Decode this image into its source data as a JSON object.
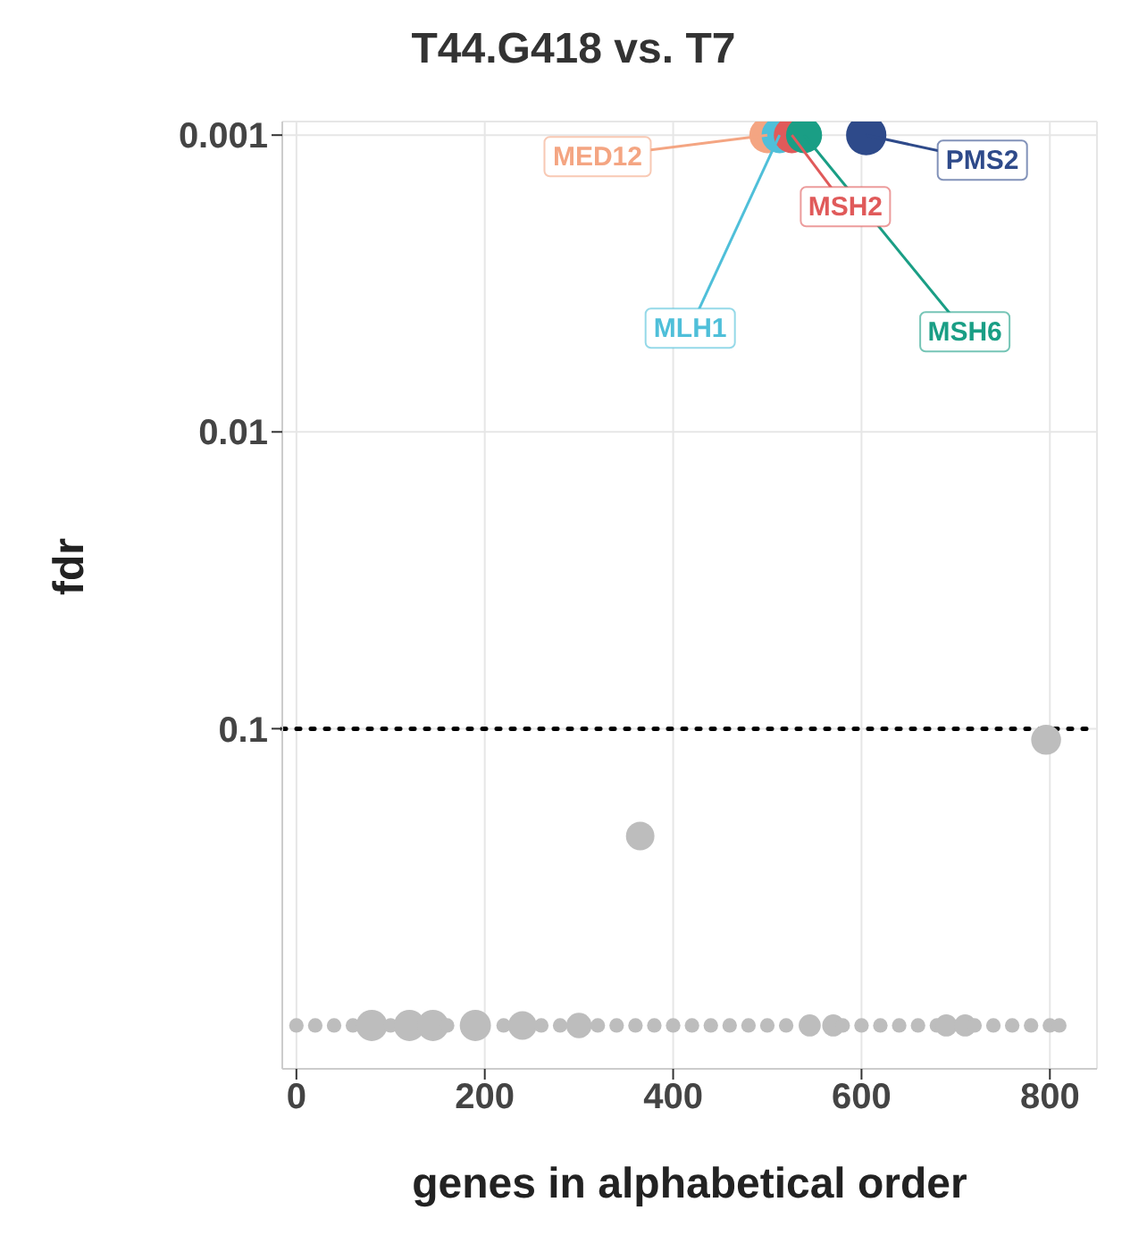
{
  "chart_data": {
    "type": "bubble",
    "title": "T44.G418 vs. T7",
    "xlabel": "genes in alphabetical order",
    "ylabel": "fdr",
    "xlim": [
      -15,
      850
    ],
    "xticks": [
      0,
      200,
      400,
      600,
      800
    ],
    "ylim": [
      1.4,
      0.0009
    ],
    "yticks": [
      0.001,
      0.01,
      0.1
    ],
    "log": "y",
    "grid": true,
    "ref_lines": [
      {
        "axis": "y",
        "value": 0.1,
        "line_style": "dotted",
        "color": "#000000"
      }
    ],
    "series": [
      {
        "color": "#bdbdbd",
        "x": [
          0,
          20,
          40,
          60,
          80,
          100,
          120,
          145,
          160,
          190,
          220,
          240,
          260,
          280,
          300,
          320,
          340,
          360,
          365,
          380,
          400,
          420,
          440,
          460,
          480,
          500,
          520,
          545,
          570,
          580,
          600,
          620,
          640,
          660,
          680,
          690,
          710,
          720,
          740,
          760,
          780,
          796,
          800,
          810
        ],
        "values": [
          1,
          1,
          1,
          1,
          1,
          1,
          1,
          1,
          1,
          1,
          1,
          1,
          1,
          1,
          1,
          1,
          1,
          1,
          0.23,
          1,
          1,
          1,
          1,
          1,
          1,
          1,
          1,
          1,
          1,
          1,
          1,
          1,
          1,
          1,
          1,
          1,
          1,
          1,
          1,
          1,
          1,
          0.109,
          1,
          1
        ],
        "sizes": [
          0.13,
          0.13,
          0.13,
          0.13,
          0.6,
          0.13,
          0.6,
          0.6,
          0.13,
          0.6,
          0.13,
          0.5,
          0.13,
          0.13,
          0.4,
          0.13,
          0.13,
          0.13,
          0.5,
          0.13,
          0.13,
          0.13,
          0.13,
          0.13,
          0.13,
          0.13,
          0.13,
          0.3,
          0.3,
          0.13,
          0.13,
          0.13,
          0.13,
          0.13,
          0.13,
          0.3,
          0.3,
          0.13,
          0.13,
          0.13,
          0.13,
          0.55,
          0.13,
          0.13
        ]
      },
      {
        "color": "#f4a582",
        "x": [
          500
        ],
        "values": [
          0.001
        ],
        "sizes": [
          0.8
        ]
      },
      {
        "color": "#4fbfd9",
        "x": [
          513
        ],
        "values": [
          0.001
        ],
        "sizes": [
          0.8
        ]
      },
      {
        "color": "#e05a5a",
        "x": [
          526
        ],
        "values": [
          0.001
        ],
        "sizes": [
          0.8
        ]
      },
      {
        "color": "#1a9e85",
        "x": [
          539
        ],
        "values": [
          0.001
        ],
        "sizes": [
          0.8
        ]
      },
      {
        "color": "#2e4a8a",
        "x": [
          605
        ],
        "values": [
          0.001
        ],
        "sizes": [
          1
        ]
      }
    ],
    "annotations": [
      {
        "text": "MED12",
        "x": 500,
        "y": 0.001
      },
      {
        "text": "MLH1",
        "x": 513,
        "y": 0.001
      },
      {
        "text": "MSH2",
        "x": 526,
        "y": 0.001
      },
      {
        "text": "MSH6",
        "x": 539,
        "y": 0.001
      },
      {
        "text": "PMS2",
        "x": 605,
        "y": 0.001
      }
    ]
  }
}
